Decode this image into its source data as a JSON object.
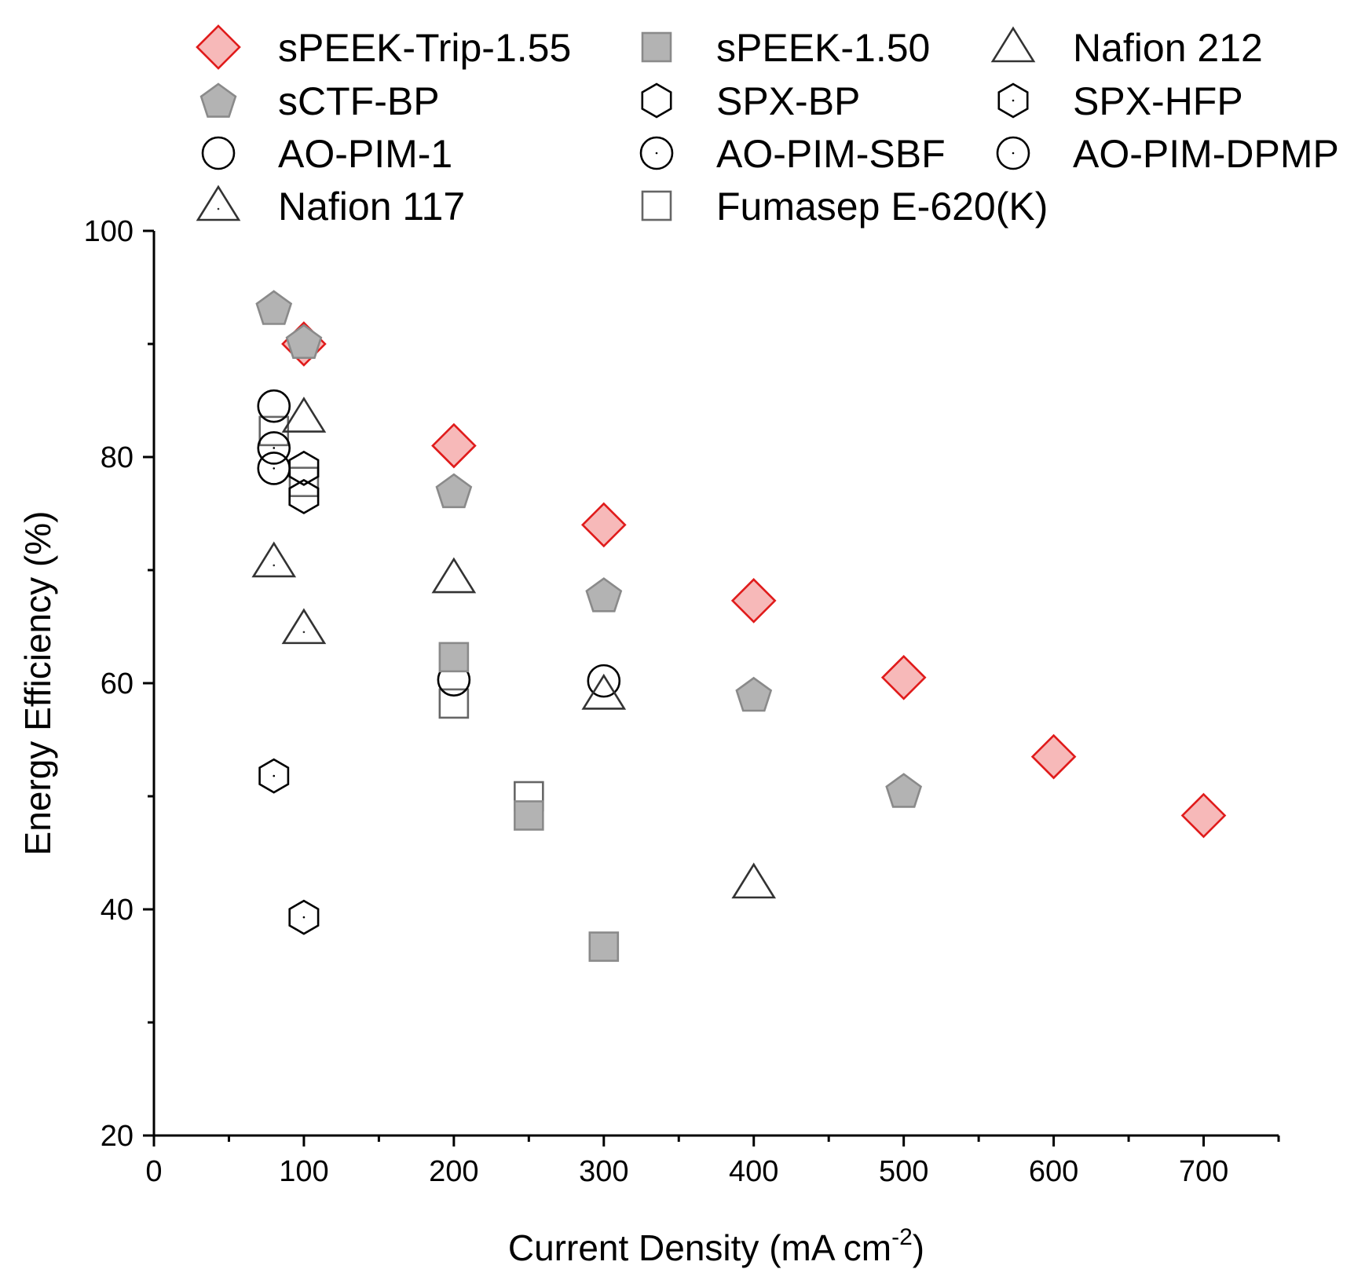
{
  "chart_data": {
    "type": "scatter",
    "title": "",
    "xlabel": {
      "text": "Current Density (mA cm",
      "sup": "-2",
      "suffix": ")"
    },
    "ylabel": "Energy Efficiency (%)",
    "xlim": [
      0,
      750
    ],
    "ylim": [
      20,
      100
    ],
    "x_major_ticks": [
      0,
      100,
      200,
      300,
      400,
      500,
      600,
      700
    ],
    "x_minor_ticks": [
      50,
      150,
      250,
      350,
      450,
      550,
      650,
      750
    ],
    "y_major_ticks": [
      20,
      40,
      60,
      80,
      100
    ],
    "y_minor_ticks": [
      30,
      50,
      70,
      90
    ],
    "x_tick_labels": [
      "0",
      "100",
      "200",
      "300",
      "400",
      "500",
      "600",
      "700"
    ],
    "y_tick_labels": [
      "20",
      "40",
      "60",
      "80",
      "100"
    ],
    "grid": false,
    "legend_placement": "top",
    "legend_columns": 3,
    "series": [
      {
        "name": "sPEEK-Trip-1.55",
        "marker": "diamond",
        "fill": "#f7b9b9",
        "stroke": "#e01b1b",
        "points": [
          [
            100,
            90
          ],
          [
            200,
            81
          ],
          [
            300,
            74
          ],
          [
            400,
            67.3
          ],
          [
            500,
            60.5
          ],
          [
            600,
            53.5
          ],
          [
            700,
            48.3
          ]
        ]
      },
      {
        "name": "sPEEK-1.50",
        "marker": "square",
        "fill": "#b3b3b3",
        "stroke": "#8a8a8a",
        "points": [
          [
            200,
            62.3
          ],
          [
            250,
            48.3
          ],
          [
            300,
            36.7
          ]
        ]
      },
      {
        "name": "Nafion 212",
        "marker": "triangle",
        "fill": "none",
        "stroke": "#333333",
        "points": [
          [
            100,
            83.5
          ],
          [
            200,
            69.3
          ],
          [
            300,
            59
          ],
          [
            400,
            42.3
          ]
        ]
      },
      {
        "name": "sCTF-BP",
        "marker": "pentagon",
        "fill": "#b3b3b3",
        "stroke": "#8a8a8a",
        "points": [
          [
            80,
            93.2
          ],
          [
            100,
            90.2
          ],
          [
            200,
            77
          ],
          [
            300,
            67.8
          ],
          [
            400,
            59
          ],
          [
            500,
            50.5
          ]
        ]
      },
      {
        "name": "SPX-BP",
        "marker": "hexagon",
        "fill": "none",
        "stroke": "#000000",
        "points": [
          [
            100,
            79
          ],
          [
            100,
            76.5
          ]
        ]
      },
      {
        "name": "SPX-HFP",
        "marker": "hexagon-dot",
        "fill": "none",
        "stroke": "#000000",
        "points": [
          [
            80,
            51.8
          ],
          [
            100,
            39.3
          ]
        ]
      },
      {
        "name": "AO-PIM-1",
        "marker": "circle",
        "fill": "none",
        "stroke": "#000000",
        "points": [
          [
            80,
            84.5
          ],
          [
            200,
            60.3
          ],
          [
            300,
            60.2
          ]
        ]
      },
      {
        "name": "AO-PIM-SBF",
        "marker": "circle-dot",
        "fill": "none",
        "stroke": "#000000",
        "points": [
          [
            80,
            79
          ]
        ]
      },
      {
        "name": "AO-PIM-DPMP",
        "marker": "circle-dot",
        "fill": "none",
        "stroke": "#000000",
        "points": [
          [
            80,
            80.8
          ]
        ]
      },
      {
        "name": "Nafion 117",
        "marker": "triangle-dot",
        "fill": "none",
        "stroke": "#333333",
        "points": [
          [
            80,
            70.7
          ],
          [
            100,
            64.8
          ]
        ]
      },
      {
        "name": "Fumasep E-620(K)",
        "marker": "square-open",
        "fill": "none",
        "stroke": "#666666",
        "points": [
          [
            80,
            82.3
          ],
          [
            100,
            77.8
          ],
          [
            200,
            58.2
          ],
          [
            250,
            50
          ]
        ]
      }
    ],
    "legend_order": [
      "sPEEK-Trip-1.55",
      "sPEEK-1.50",
      "Nafion 212",
      "sCTF-BP",
      "SPX-BP",
      "SPX-HFP",
      "AO-PIM-1",
      "AO-PIM-SBF",
      "AO-PIM-DPMP",
      "Nafion 117",
      "Fumasep E-620(K)"
    ]
  }
}
